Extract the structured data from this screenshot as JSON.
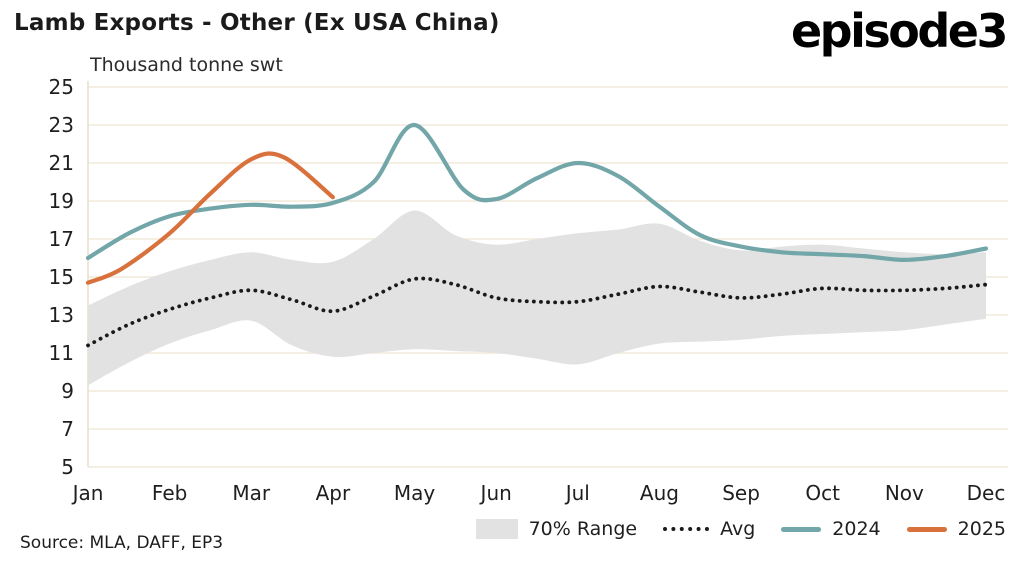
{
  "header": {
    "title": "Lamb Exports - Other (Ex USA China)",
    "logo": "episode3"
  },
  "subtitle": "Thousand tonne swt",
  "source": "Source: MLA, DAFF, EP3",
  "legend": {
    "band": "70% Range",
    "avg": "Avg",
    "y2024": "2024",
    "y2025": "2025"
  },
  "chart_data": {
    "type": "line",
    "title": "Lamb Exports - Other (Ex USA China)",
    "ylabel": "Thousand tonne swt",
    "ylim": [
      5,
      25
    ],
    "ytick_step": 2,
    "grid": "horizontal",
    "legend_position": "bottom-right",
    "x_categories": [
      "Jan",
      "Feb",
      "Mar",
      "Apr",
      "May",
      "Jun",
      "Jul",
      "Aug",
      "Sep",
      "Oct",
      "Nov",
      "Dec"
    ],
    "colors": {
      "band": "#e2e2e2",
      "avg": "#1a1a1a",
      "y2024": "#72a6a9",
      "y2025": "#d9713c"
    },
    "band": {
      "name": "70% Range",
      "x": [
        0,
        0.5,
        1,
        1.5,
        2,
        2.5,
        3,
        3.5,
        4,
        4.5,
        5,
        5.5,
        6,
        6.5,
        7,
        7.5,
        8,
        8.5,
        9,
        9.5,
        10,
        10.5,
        11
      ],
      "upper": [
        13.5,
        14.5,
        15.3,
        15.9,
        16.3,
        15.9,
        15.8,
        17.0,
        18.5,
        17.2,
        16.7,
        17.0,
        17.3,
        17.5,
        17.8,
        16.9,
        16.4,
        16.6,
        16.7,
        16.5,
        16.3,
        16.2,
        16.3
      ],
      "lower": [
        9.3,
        10.5,
        11.5,
        12.2,
        12.7,
        11.4,
        10.8,
        11.0,
        11.2,
        11.1,
        11.0,
        10.7,
        10.4,
        11.0,
        11.5,
        11.6,
        11.7,
        11.9,
        12.0,
        12.1,
        12.2,
        12.5,
        12.8
      ]
    },
    "series": [
      {
        "name": "Avg",
        "style": "dotted",
        "color_key": "avg",
        "x": [
          0,
          0.5,
          1,
          1.5,
          2,
          2.5,
          3,
          3.5,
          4,
          4.5,
          5,
          5.5,
          6,
          6.5,
          7,
          7.5,
          8,
          8.5,
          9,
          9.5,
          10,
          10.5,
          11
        ],
        "y": [
          11.4,
          12.5,
          13.3,
          13.9,
          14.3,
          13.8,
          13.2,
          14.0,
          14.9,
          14.6,
          13.9,
          13.7,
          13.7,
          14.1,
          14.5,
          14.2,
          13.9,
          14.1,
          14.4,
          14.3,
          14.3,
          14.4,
          14.6
        ]
      },
      {
        "name": "2024",
        "style": "solid",
        "color_key": "y2024",
        "x": [
          0,
          0.5,
          1,
          1.5,
          2,
          2.5,
          3,
          3.5,
          4,
          4.6,
          5,
          5.5,
          6,
          6.5,
          7,
          7.5,
          8,
          8.5,
          9,
          9.5,
          10,
          10.5,
          11
        ],
        "y": [
          16.0,
          17.3,
          18.2,
          18.6,
          18.8,
          18.7,
          18.9,
          20.0,
          23.0,
          19.6,
          19.1,
          20.2,
          21.0,
          20.3,
          18.7,
          17.2,
          16.6,
          16.3,
          16.2,
          16.1,
          15.9,
          16.1,
          16.5
        ]
      },
      {
        "name": "2025",
        "style": "solid",
        "color_key": "y2025",
        "x": [
          0,
          0.4,
          1,
          1.5,
          2,
          2.4,
          3
        ],
        "y": [
          14.7,
          15.4,
          17.3,
          19.4,
          21.2,
          21.3,
          19.2
        ]
      }
    ]
  }
}
